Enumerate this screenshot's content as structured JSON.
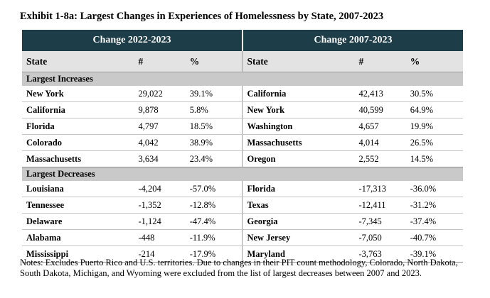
{
  "title": "Exhibit 1-8a: Largest Changes in Experiences of Homelessness by State, 2007-2023",
  "group_headers": {
    "left": "Change 2022-2023",
    "right": "Change 2007-2023"
  },
  "columns": {
    "state": "State",
    "number": "#",
    "percent": "%"
  },
  "sections": {
    "increases": "Largest Increases",
    "decreases": "Largest Decreases"
  },
  "increases": [
    {
      "l_state": "New York",
      "l_num": "29,022",
      "l_pct": "39.1%",
      "r_state": "California",
      "r_num": "42,413",
      "r_pct": "30.5%"
    },
    {
      "l_state": "California",
      "l_num": "9,878",
      "l_pct": "5.8%",
      "r_state": "New York",
      "r_num": "40,599",
      "r_pct": "64.9%"
    },
    {
      "l_state": "Florida",
      "l_num": "4,797",
      "l_pct": "18.5%",
      "r_state": "Washington",
      "r_num": "4,657",
      "r_pct": "19.9%"
    },
    {
      "l_state": "Colorado",
      "l_num": "4,042",
      "l_pct": "38.9%",
      "r_state": "Massachusetts",
      "r_num": "4,014",
      "r_pct": "26.5%"
    },
    {
      "l_state": "Massachusetts",
      "l_num": "3,634",
      "l_pct": "23.4%",
      "r_state": "Oregon",
      "r_num": "2,552",
      "r_pct": "14.5%"
    }
  ],
  "decreases": [
    {
      "l_state": "Louisiana",
      "l_num": "-4,204",
      "l_pct": "-57.0%",
      "r_state": "Florida",
      "r_num": "-17,313",
      "r_pct": "-36.0%"
    },
    {
      "l_state": "Tennessee",
      "l_num": "-1,352",
      "l_pct": "-12.8%",
      "r_state": "Texas",
      "r_num": "-12,411",
      "r_pct": "-31.2%"
    },
    {
      "l_state": "Delaware",
      "l_num": "-1,124",
      "l_pct": "-47.4%",
      "r_state": "Georgia",
      "r_num": "-7,345",
      "r_pct": "-37.4%"
    },
    {
      "l_state": "Alabama",
      "l_num": "-448",
      "l_pct": "-11.9%",
      "r_state": "New Jersey",
      "r_num": "-7,050",
      "r_pct": "-40.7%"
    },
    {
      "l_state": "Mississippi",
      "l_num": "-214",
      "l_pct": "-17.9%",
      "r_state": "Maryland",
      "r_num": "-3,763",
      "r_pct": "-39.1%"
    }
  ],
  "notes": "Notes: Excludes Puerto Rico and U.S. territories. Due to changes in their PIT count methodology, Colorado, North Dakota, South Dakota, Michigan, and Wyoming were excluded from the list of largest decreases between 2007 and 2023."
}
